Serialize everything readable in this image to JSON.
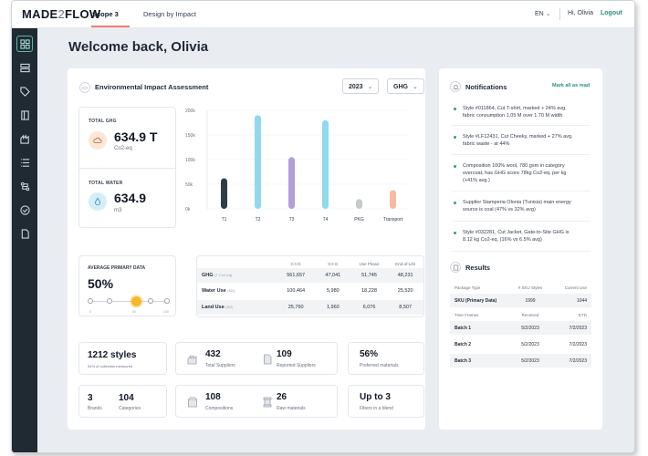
{
  "app": {
    "logo_main": "MADE",
    "logo_mid": "2",
    "logo_tail": "FLOW",
    "tabs": [
      {
        "label": "Scope 3",
        "active": true
      },
      {
        "label": "Design by Impact",
        "active": false
      }
    ],
    "language": "EN",
    "greeting": "Hi, Olivia",
    "logout_label": "Logout"
  },
  "sidebar": {
    "items": [
      {
        "icon": "grid-icon",
        "active": true
      },
      {
        "icon": "layers-icon"
      },
      {
        "icon": "tag-icon"
      },
      {
        "icon": "book-icon"
      },
      {
        "icon": "factory-icon"
      },
      {
        "icon": "list-icon"
      },
      {
        "icon": "route-icon"
      },
      {
        "icon": "check-circle-icon"
      },
      {
        "icon": "document-icon"
      }
    ]
  },
  "page": {
    "welcome": "Welcome back, Olivia"
  },
  "assessment": {
    "title": "Environmental Impact Assessment",
    "year_select": "2023",
    "metric_select": "GHG",
    "total_ghg_label": "TOTAL GHG",
    "total_ghg_value": "634.9 T",
    "total_ghg_unit": "Co2-eq",
    "total_water_label": "TOTAL WATER",
    "total_water_value": "634.9",
    "total_water_unit": "m3"
  },
  "chart_data": {
    "type": "bar",
    "categories": [
      "T1",
      "T2",
      "T3",
      "T4",
      "PKG",
      "Transport"
    ],
    "values": [
      62,
      190,
      105,
      180,
      20,
      38
    ],
    "colors": [
      "#2f3e46",
      "#8fd8ee",
      "#b39ddb",
      "#8fd8ee",
      "#c5cacd",
      "#f6b9a3"
    ],
    "yticks": [
      "200k",
      "150k",
      "100k",
      "50k",
      "0k"
    ],
    "ylim": [
      0,
      200
    ]
  },
  "primary_data": {
    "label": "AVERAGE PRIMARY DATA",
    "value": "50%",
    "level": 0.5,
    "ticks": [
      "0",
      "50",
      "100"
    ]
  },
  "impact_table": {
    "headers": [
      "",
      "C-t-G",
      "G-t-G",
      "Use Phase",
      "End-of-Life"
    ],
    "rows": [
      {
        "label": "GHG",
        "unit": "(T Co2-eq)",
        "values": [
          "561,657",
          "47,041",
          "51,745",
          "48,231"
        ]
      },
      {
        "label": "Water Use",
        "unit": "(M3)",
        "values": [
          "100,464",
          "5,980",
          "18,228",
          "25,520"
        ]
      },
      {
        "label": "Land Use",
        "unit": "(M2)",
        "values": [
          "25,760",
          "1,960",
          "6,076",
          "8,507"
        ]
      }
    ]
  },
  "stats": {
    "styles_value": "1212 styles",
    "styles_label": "54% of collection measured",
    "suppliers_value": "432",
    "suppliers_label": "Total Suppliers",
    "reported_value": "109",
    "reported_label": "Reported Suppliers",
    "preferred_value": "56%",
    "preferred_label": "Preferred materials",
    "brands_value": "3",
    "brands_label": "Brands",
    "categories_value": "104",
    "categories_label": "Categories",
    "compositions_value": "108",
    "compositions_label": "Compositions",
    "raw_value": "26",
    "raw_label": "Raw materials",
    "fibers_value": "Up to 3",
    "fibers_label": "Fibers in a blend"
  },
  "notifications": {
    "title": "Notifications",
    "mark_all_label": "Mark all as read",
    "items": [
      {
        "line1": "Style #011864, Cut T-shirt, marked + 24% avg.",
        "line2": "fabric consumption 1.05 M over 1.70 M width"
      },
      {
        "line1": "Style #LF12431, Cut Cheeky, marked + 27% avg.",
        "line2": "fabric waste - at 44%"
      },
      {
        "line1": "Composition 100% wool, 780 gsm in category",
        "line2": "overcoat, has GHG score 78kg Co2-eq. per kg",
        "line3": "(+41% avg.)"
      },
      {
        "line1": "Supplier Stamperia Olonia (Tunisia) main energy",
        "line2": "source is coal (47% vs 32% avg)"
      },
      {
        "line1": "Style #032281, Cut Jacket, Gate-to-Site GHG is",
        "line2": "8.12 kg Co2-eq. (16% vs 6.5% avg)"
      }
    ]
  },
  "results": {
    "title": "Results",
    "head1": [
      "Package Type",
      "# SKU Styles",
      "Current Use"
    ],
    "sku_row": [
      "SKU (Primary Data)",
      "1999",
      "1044"
    ],
    "head2": [
      "Time Frames",
      "Received",
      "ETD"
    ],
    "batches": [
      [
        "Batch 1",
        "5/2/2023",
        "7/2/2023"
      ],
      [
        "Batch 2",
        "5/2/2023",
        "7/2/2023"
      ],
      [
        "Batch 3",
        "5/2/2023",
        "7/2/2023"
      ]
    ]
  }
}
